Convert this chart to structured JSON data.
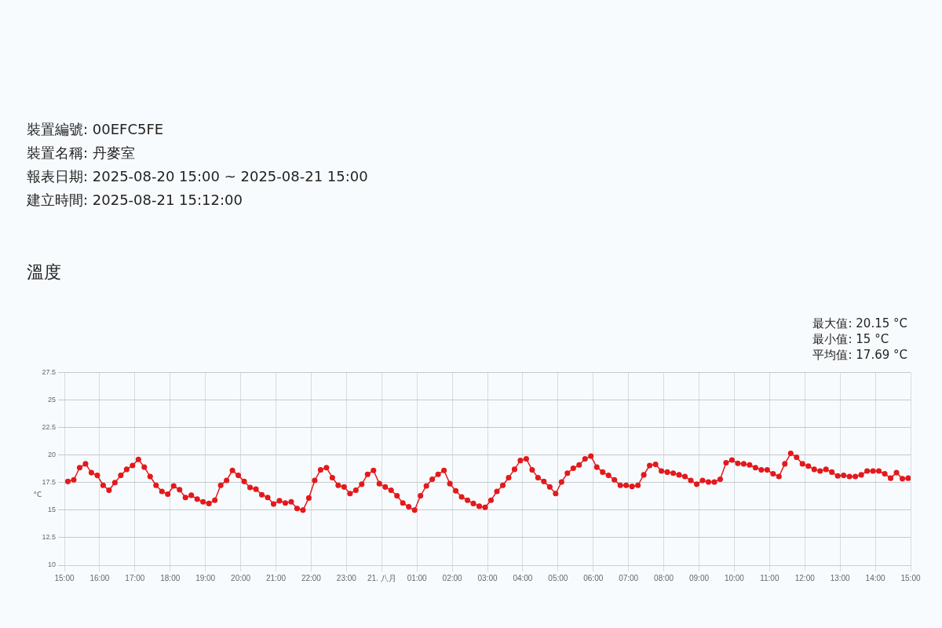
{
  "chart_data": {
    "type": "line",
    "title": "溫度",
    "ylabel": "°C",
    "annotations": [
      "裝置編號: 00EFC5FE",
      "裝置名稱: 丹麥室",
      "報表日期: 2025-08-20 15:00 ~ 2025-08-21 15:00",
      "建立時間: 2025-08-21 15:12:00",
      "最大值: 20.15 °C",
      "最小值: 15 °C",
      "平均值: 17.69 °C"
    ],
    "x": [
      "2025-08-20T15:06",
      "2025-08-20T15:16",
      "2025-08-20T15:26",
      "2025-08-20T15:36",
      "2025-08-20T15:46",
      "2025-08-20T15:56",
      "2025-08-20T16:06",
      "2025-08-20T16:16",
      "2025-08-20T16:26",
      "2025-08-20T16:36",
      "2025-08-20T16:46",
      "2025-08-20T16:56",
      "2025-08-20T17:06",
      "2025-08-20T17:16",
      "2025-08-20T17:26",
      "2025-08-20T17:36",
      "2025-08-20T17:46",
      "2025-08-20T17:56",
      "2025-08-20T18:06",
      "2025-08-20T18:16",
      "2025-08-20T18:26",
      "2025-08-20T18:36",
      "2025-08-20T18:46",
      "2025-08-20T18:56",
      "2025-08-20T19:06",
      "2025-08-20T19:16",
      "2025-08-20T19:26",
      "2025-08-20T19:36",
      "2025-08-20T19:46",
      "2025-08-20T19:56",
      "2025-08-20T20:06",
      "2025-08-20T20:16",
      "2025-08-20T20:26",
      "2025-08-20T20:36",
      "2025-08-20T20:46",
      "2025-08-20T20:56",
      "2025-08-20T21:06",
      "2025-08-20T21:16",
      "2025-08-20T21:26",
      "2025-08-20T21:36",
      "2025-08-20T21:46",
      "2025-08-20T21:56",
      "2025-08-20T22:06",
      "2025-08-20T22:16",
      "2025-08-20T22:26",
      "2025-08-20T22:36",
      "2025-08-20T22:46",
      "2025-08-20T22:56",
      "2025-08-20T23:06",
      "2025-08-20T23:16",
      "2025-08-20T23:26",
      "2025-08-20T23:36",
      "2025-08-20T23:46",
      "2025-08-20T23:56",
      "2025-08-21T00:06",
      "2025-08-21T00:16",
      "2025-08-21T00:26",
      "2025-08-21T00:36",
      "2025-08-21T00:46",
      "2025-08-21T00:56",
      "2025-08-21T01:06",
      "2025-08-21T01:16",
      "2025-08-21T01:26",
      "2025-08-21T01:36",
      "2025-08-21T01:46",
      "2025-08-21T01:56",
      "2025-08-21T02:06",
      "2025-08-21T02:16",
      "2025-08-21T02:26",
      "2025-08-21T02:36",
      "2025-08-21T02:46",
      "2025-08-21T02:56",
      "2025-08-21T03:06",
      "2025-08-21T03:16",
      "2025-08-21T03:26",
      "2025-08-21T03:36",
      "2025-08-21T03:46",
      "2025-08-21T03:56",
      "2025-08-21T04:06",
      "2025-08-21T04:16",
      "2025-08-21T04:26",
      "2025-08-21T04:36",
      "2025-08-21T04:46",
      "2025-08-21T04:56",
      "2025-08-21T05:06",
      "2025-08-21T05:16",
      "2025-08-21T05:26",
      "2025-08-21T05:36",
      "2025-08-21T05:46",
      "2025-08-21T05:56",
      "2025-08-21T06:06",
      "2025-08-21T06:16",
      "2025-08-21T06:26",
      "2025-08-21T06:36",
      "2025-08-21T06:46",
      "2025-08-21T06:56",
      "2025-08-21T07:06",
      "2025-08-21T07:16",
      "2025-08-21T07:26",
      "2025-08-21T07:36",
      "2025-08-21T07:46",
      "2025-08-21T07:56",
      "2025-08-21T08:06",
      "2025-08-21T08:16",
      "2025-08-21T08:26",
      "2025-08-21T08:36",
      "2025-08-21T08:46",
      "2025-08-21T08:56",
      "2025-08-21T09:06",
      "2025-08-21T09:16",
      "2025-08-21T09:26",
      "2025-08-21T09:36",
      "2025-08-21T09:46",
      "2025-08-21T09:56",
      "2025-08-21T10:06",
      "2025-08-21T10:16",
      "2025-08-21T10:26",
      "2025-08-21T10:36",
      "2025-08-21T10:46",
      "2025-08-21T10:56",
      "2025-08-21T11:06",
      "2025-08-21T11:16",
      "2025-08-21T11:26",
      "2025-08-21T11:36",
      "2025-08-21T11:46",
      "2025-08-21T11:56",
      "2025-08-21T12:06",
      "2025-08-21T12:16",
      "2025-08-21T12:26",
      "2025-08-21T12:36",
      "2025-08-21T12:46",
      "2025-08-21T12:56",
      "2025-08-21T13:06",
      "2025-08-21T13:16",
      "2025-08-21T13:26",
      "2025-08-21T13:36",
      "2025-08-21T13:46",
      "2025-08-21T13:56",
      "2025-08-21T14:06",
      "2025-08-21T14:16",
      "2025-08-21T14:26",
      "2025-08-21T14:36",
      "2025-08-21T14:46",
      "2025-08-21T14:56"
    ],
    "series": [
      {
        "color": "#e3191c",
        "values": [
          17.6,
          17.75,
          18.85,
          19.2,
          18.4,
          18.15,
          17.25,
          16.8,
          17.5,
          18.15,
          18.7,
          19.05,
          19.6,
          18.9,
          18.05,
          17.25,
          16.7,
          16.45,
          17.2,
          16.85,
          16.15,
          16.35,
          16.0,
          15.75,
          15.6,
          15.9,
          17.25,
          17.7,
          18.6,
          18.15,
          17.6,
          17.05,
          16.9,
          16.4,
          16.15,
          15.55,
          15.85,
          15.65,
          15.75,
          15.15,
          15.0,
          16.1,
          17.7,
          18.65,
          18.85,
          17.95,
          17.25,
          17.1,
          16.5,
          16.8,
          17.35,
          18.25,
          18.6,
          17.4,
          17.1,
          16.8,
          16.3,
          15.65,
          15.3,
          15.0,
          16.3,
          17.2,
          17.8,
          18.25,
          18.6,
          17.4,
          16.75,
          16.2,
          15.9,
          15.6,
          15.35,
          15.25,
          15.9,
          16.7,
          17.25,
          17.95,
          18.7,
          19.5,
          19.65,
          18.65,
          17.95,
          17.6,
          17.1,
          16.5,
          17.55,
          18.35,
          18.8,
          19.1,
          19.65,
          19.9,
          18.9,
          18.45,
          18.15,
          17.75,
          17.25,
          17.25,
          17.15,
          17.25,
          18.2,
          19.05,
          19.15,
          18.55,
          18.45,
          18.35,
          18.2,
          18.05,
          17.7,
          17.35,
          17.7,
          17.55,
          17.55,
          17.8,
          19.3,
          19.55,
          19.25,
          19.2,
          19.1,
          18.85,
          18.65,
          18.65,
          18.3,
          18.05,
          19.2,
          20.15,
          19.8,
          19.2,
          19.0,
          18.7,
          18.55,
          18.7,
          18.45,
          18.1,
          18.15,
          18.05,
          18.05,
          18.2,
          18.55,
          18.55,
          18.55,
          18.3,
          17.9,
          18.4,
          17.85,
          17.9
        ]
      }
    ],
    "xlim": [
      "2025-08-20T15:00",
      "2025-08-21T15:00"
    ],
    "xticks": [
      {
        "value": "2025-08-20T15:00",
        "label": "15:00"
      },
      {
        "value": "2025-08-20T16:00",
        "label": "16:00"
      },
      {
        "value": "2025-08-20T17:00",
        "label": "17:00"
      },
      {
        "value": "2025-08-20T18:00",
        "label": "18:00"
      },
      {
        "value": "2025-08-20T19:00",
        "label": "19:00"
      },
      {
        "value": "2025-08-20T20:00",
        "label": "20:00"
      },
      {
        "value": "2025-08-20T21:00",
        "label": "21:00"
      },
      {
        "value": "2025-08-20T22:00",
        "label": "22:00"
      },
      {
        "value": "2025-08-20T23:00",
        "label": "23:00"
      },
      {
        "value": "2025-08-21T00:00",
        "label": "21. 八月"
      },
      {
        "value": "2025-08-21T01:00",
        "label": "01:00"
      },
      {
        "value": "2025-08-21T02:00",
        "label": "02:00"
      },
      {
        "value": "2025-08-21T03:00",
        "label": "03:00"
      },
      {
        "value": "2025-08-21T04:00",
        "label": "04:00"
      },
      {
        "value": "2025-08-21T05:00",
        "label": "05:00"
      },
      {
        "value": "2025-08-21T06:00",
        "label": "06:00"
      },
      {
        "value": "2025-08-21T07:00",
        "label": "07:00"
      },
      {
        "value": "2025-08-21T08:00",
        "label": "08:00"
      },
      {
        "value": "2025-08-21T09:00",
        "label": "09:00"
      },
      {
        "value": "2025-08-21T10:00",
        "label": "10:00"
      },
      {
        "value": "2025-08-21T11:00",
        "label": "11:00"
      },
      {
        "value": "2025-08-21T12:00",
        "label": "12:00"
      },
      {
        "value": "2025-08-21T13:00",
        "label": "13:00"
      },
      {
        "value": "2025-08-21T14:00",
        "label": "14:00"
      },
      {
        "value": "2025-08-21T15:00",
        "label": "15:00"
      }
    ],
    "ylim": [
      10,
      27.5
    ],
    "yticks": [
      10,
      12.5,
      15,
      17.5,
      20,
      22.5,
      25,
      27.5
    ],
    "grid": true,
    "legend": false,
    "marker": "circle",
    "line_style": "solid"
  }
}
